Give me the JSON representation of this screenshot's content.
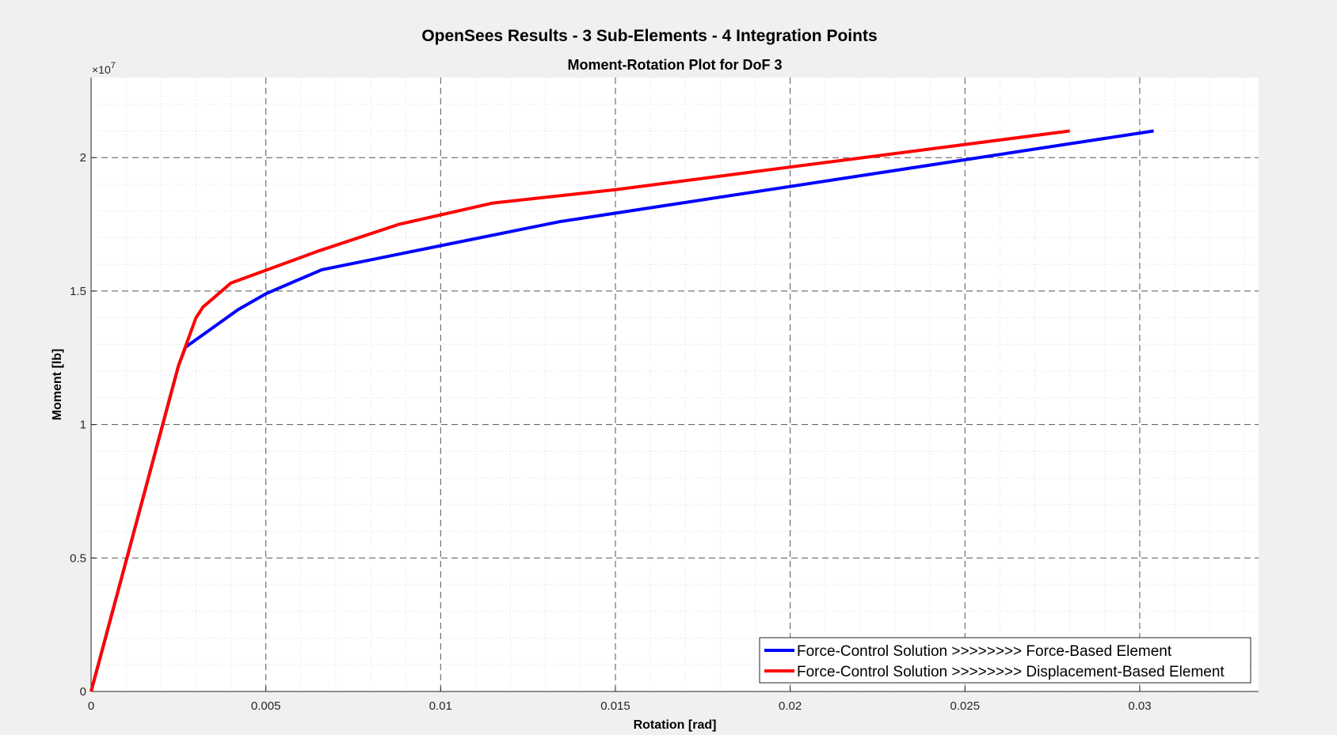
{
  "figure": {
    "suptitle": "OpenSees Results - 3 Sub-Elements - 4 Integration Points"
  },
  "chart_data": {
    "type": "line",
    "title": "Moment-Rotation Plot for DoF 3",
    "xlabel": "Rotation [rad]",
    "ylabel": "Moment [lb]",
    "y_exponent_label": "×10",
    "y_exponent_power": "7",
    "xlim": [
      0,
      0.0334
    ],
    "ylim": [
      0,
      2.3
    ],
    "y_scale_factor": 10000000,
    "grid": true,
    "minor_grid": true,
    "legend_position": "bottom-right",
    "x_ticks": [
      0,
      0.005,
      0.01,
      0.015,
      0.02,
      0.025,
      0.03
    ],
    "x_tick_labels": [
      "0",
      "0.005",
      "0.01",
      "0.015",
      "0.02",
      "0.025",
      "0.03"
    ],
    "y_ticks": [
      0,
      0.5,
      1,
      1.5,
      2
    ],
    "y_tick_labels": [
      "0",
      "0.5",
      "1",
      "1.5",
      "2"
    ],
    "series": [
      {
        "name": "Force-Control Solution >>>>>>>> Force-Based Element",
        "color": "#0000ff",
        "x": [
          0,
          0.0025,
          0.0027,
          0.0042,
          0.005,
          0.0066,
          0.0134,
          0.0304
        ],
        "y": [
          0,
          1.22,
          1.29,
          1.43,
          1.49,
          1.58,
          1.76,
          2.1
        ]
      },
      {
        "name": "Force-Control Solution >>>>>>>> Displacement-Based Element",
        "color": "#ff0000",
        "x": [
          0,
          0.0025,
          0.003,
          0.0032,
          0.004,
          0.0065,
          0.0088,
          0.0115,
          0.015,
          0.028
        ],
        "y": [
          0,
          1.22,
          1.4,
          1.44,
          1.53,
          1.65,
          1.75,
          1.83,
          1.88,
          2.1
        ]
      }
    ]
  }
}
